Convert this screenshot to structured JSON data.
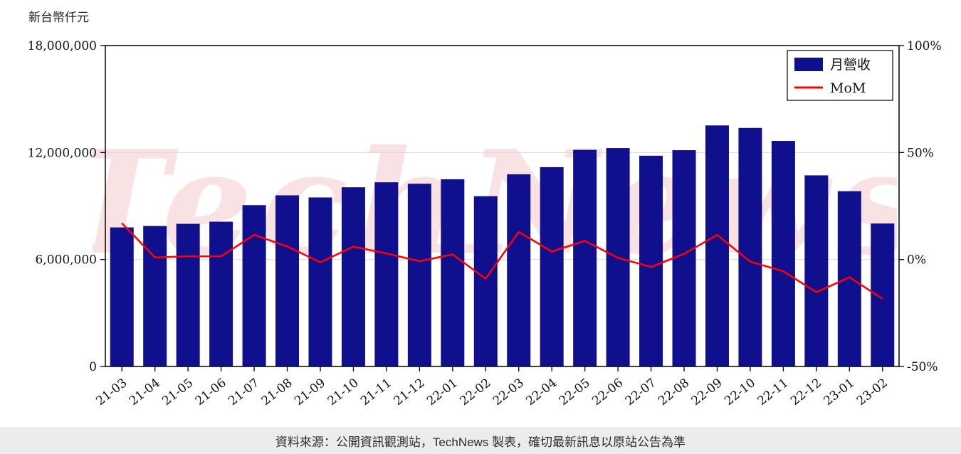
{
  "header": {
    "y_axis_title": "新台幣仟元"
  },
  "legend": {
    "bar_label": "月營收",
    "line_label": "MoM"
  },
  "watermark": "TechNews",
  "footer": {
    "source_text": "資料來源：公開資訊觀測站，TechNews 製表，確切最新訊息以原站公告為準"
  },
  "colors": {
    "bar": "#10108e",
    "line": "#ff0000",
    "grid": "#d9d9d9",
    "border": "#000000",
    "footer_bg": "#ececec"
  },
  "chart_data": {
    "type": "bar",
    "title": "",
    "xlabel": "",
    "ylabel": "新台幣仟元",
    "categories": [
      "21-03",
      "21-04",
      "21-05",
      "21-06",
      "21-07",
      "21-08",
      "21-09",
      "21-10",
      "21-11",
      "21-12",
      "22-01",
      "22-02",
      "22-03",
      "22-04",
      "22-05",
      "22-06",
      "22-07",
      "22-08",
      "22-09",
      "22-10",
      "22-11",
      "22-12",
      "23-01",
      "23-02"
    ],
    "series": [
      {
        "name": "月營收",
        "type": "bar",
        "axis": "left",
        "values": [
          7800000,
          7880000,
          8000000,
          8120000,
          9050000,
          9600000,
          9480000,
          10050000,
          10330000,
          10250000,
          10500000,
          9550000,
          10780000,
          11180000,
          12150000,
          12250000,
          11820000,
          12130000,
          13520000,
          13380000,
          12650000,
          10720000,
          9830000,
          8020000
        ]
      },
      {
        "name": "MoM",
        "type": "line",
        "axis": "right",
        "values": [
          17.0,
          1.0,
          1.5,
          1.5,
          11.5,
          6.1,
          -1.3,
          6.0,
          2.8,
          -0.8,
          2.4,
          -9.0,
          12.9,
          3.7,
          8.7,
          0.8,
          -3.5,
          2.6,
          11.5,
          -1.0,
          -5.5,
          -15.3,
          -8.3,
          -18.4
        ]
      }
    ],
    "left_axis": {
      "range": [
        0,
        18000000
      ],
      "ticks": [
        {
          "v": 0,
          "label": "0"
        },
        {
          "v": 6000000,
          "label": "6,000,000"
        },
        {
          "v": 12000000,
          "label": "12,000,000"
        },
        {
          "v": 18000000,
          "label": "18,000,000"
        }
      ]
    },
    "right_axis": {
      "range": [
        -50,
        100
      ],
      "ticks": [
        {
          "v": -50,
          "label": "-50%"
        },
        {
          "v": 0,
          "label": "0%"
        },
        {
          "v": 50,
          "label": "50%"
        },
        {
          "v": 100,
          "label": "100%"
        }
      ]
    },
    "grid": "horizontal",
    "legend_position": "top-right"
  }
}
